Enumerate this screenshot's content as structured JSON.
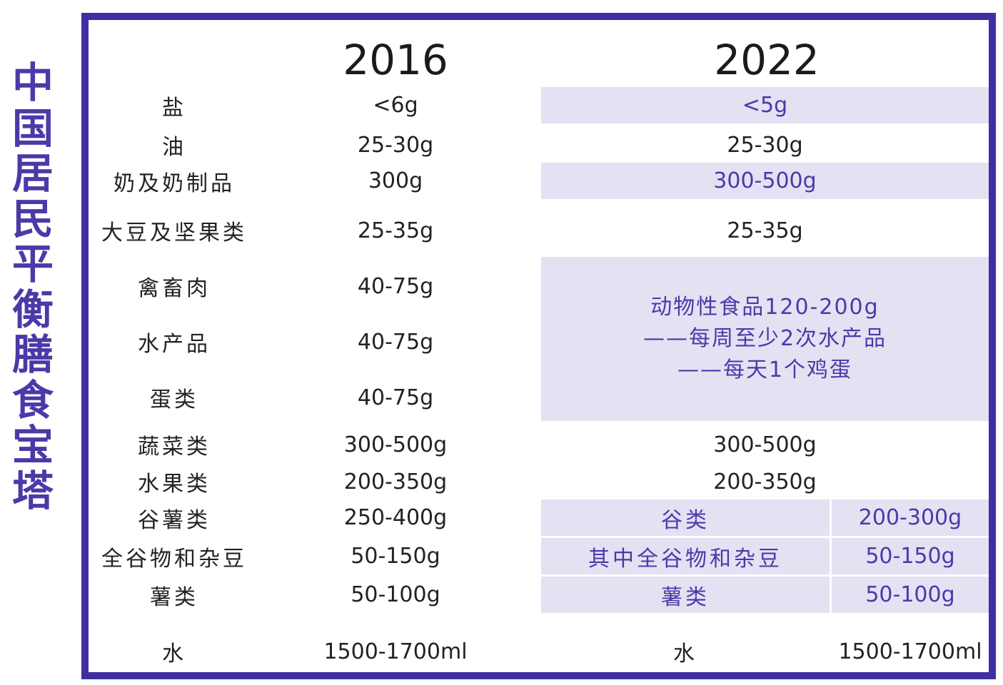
{
  "side_title": [
    "中",
    "国",
    "居",
    "民",
    "平",
    "衡",
    "膳",
    "食",
    "宝",
    "塔"
  ],
  "years": {
    "left": "2016",
    "right": "2022"
  },
  "rows": {
    "salt": {
      "category": "盐",
      "v2016": "<6g",
      "v2022": "<5g"
    },
    "oil": {
      "category": "油",
      "v2016": "25-30g",
      "v2022": "25-30g"
    },
    "dairy": {
      "category": "奶及奶制品",
      "v2016": "300g",
      "v2022": "300-500g"
    },
    "soy_nuts": {
      "category": "大豆及坚果类",
      "v2016": "25-35g",
      "v2022": "25-35g"
    },
    "meat": {
      "category": "禽畜肉",
      "v2016": "40-75g"
    },
    "aquatic": {
      "category": "水产品",
      "v2016": "40-75g"
    },
    "eggs": {
      "category": "蛋类",
      "v2016": "40-75g"
    },
    "animal_2022": {
      "line1": "动物性食品120-200g",
      "line2": "——每周至少2次水产品",
      "line3": "——每天1个鸡蛋"
    },
    "vegetables": {
      "category": "蔬菜类",
      "v2016": "300-500g",
      "v2022": "300-500g"
    },
    "fruits": {
      "category": "水果类",
      "v2016": "200-350g",
      "v2022": "200-350g"
    },
    "grains_tubers": {
      "category": "谷薯类",
      "v2016": "250-400g",
      "sub2022": "谷类",
      "v2022": "200-300g"
    },
    "whole_grains": {
      "category": "全谷物和杂豆",
      "v2016": "50-150g",
      "sub2022": "其中全谷物和杂豆",
      "v2022": "50-150g"
    },
    "tubers": {
      "category": "薯类",
      "v2016": "50-100g",
      "sub2022": "薯类",
      "v2022": "50-100g"
    },
    "water": {
      "category": "水",
      "v2016": "1500-1700ml",
      "sub2022": "水",
      "v2022": "1500-1700ml"
    }
  },
  "colors": {
    "frame": "#3f2fa3",
    "highlight": "#e4e1f3",
    "accent_text": "#4a3aa8"
  }
}
